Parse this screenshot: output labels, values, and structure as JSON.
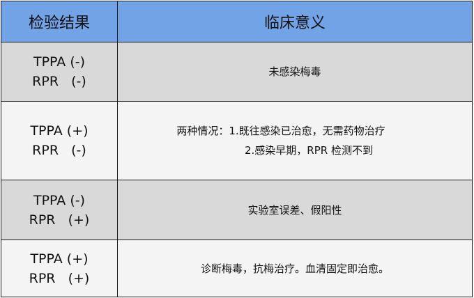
{
  "header": {
    "col1": "检验结果",
    "col2": "临床意义"
  },
  "colors": {
    "header_bg": "#72a3e6",
    "row_gray": "#d9d9d9",
    "row_light": "#f4f4f4"
  },
  "rows": [
    {
      "tppa": "TPPA (-)",
      "rpr": "RPR   (-)",
      "meaning": [
        "未感染梅毒"
      ]
    },
    {
      "tppa": "TPPA (+)",
      "rpr": "RPR   (-)",
      "meaning": [
        "两种情况：1.既往感染已治愈，无需药物治疗",
        "2.感染早期，RPR 检测不到"
      ]
    },
    {
      "tppa": "TPPA (-)",
      "rpr": "RPR   (+)",
      "meaning": [
        "实验室误差、假阳性"
      ]
    },
    {
      "tppa": "TPPA (+)",
      "rpr": "RPR   (+)",
      "meaning": [
        "诊断梅毒，抗梅治疗。血清固定即治愈。"
      ]
    }
  ]
}
